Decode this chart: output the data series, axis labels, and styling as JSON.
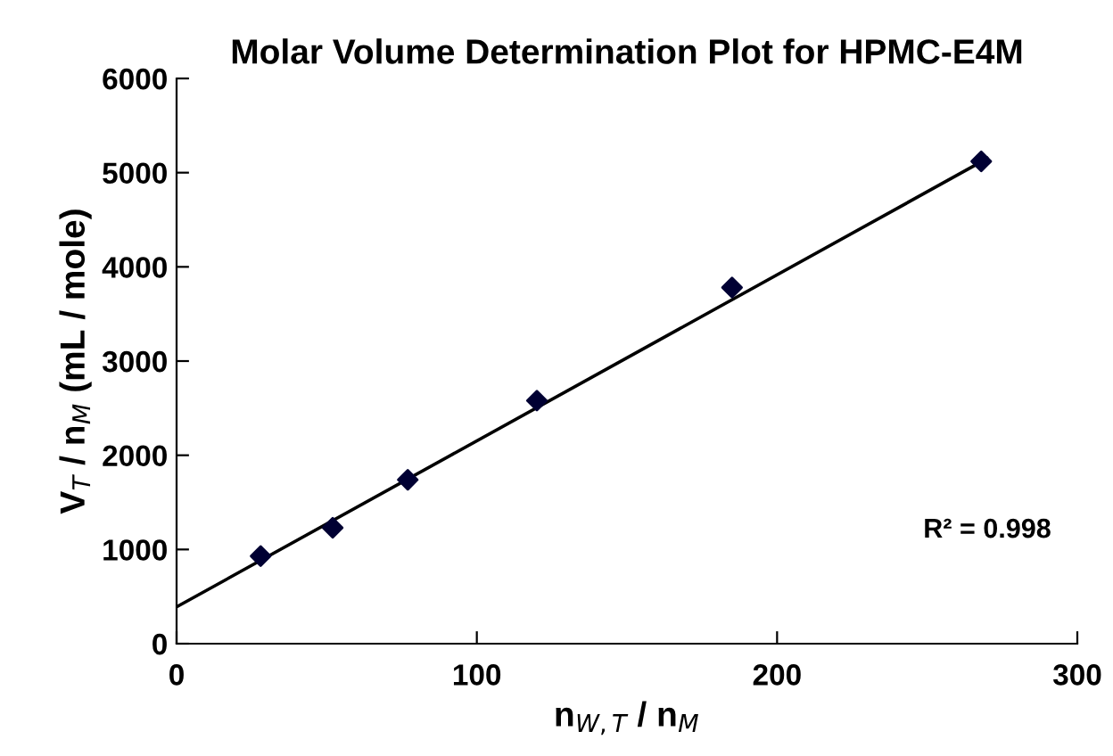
{
  "chart_data": {
    "type": "scatter",
    "title": "Molar Volume Determination Plot for HPMC-E4M",
    "xlabel": "n$_{W,T}$ / n$_{M}$",
    "ylabel": "V$_{T}$ / n$_{M}$ (mL / mole)",
    "series": [
      {
        "color": "#000033",
        "marker": "diamond",
        "x": [
          28,
          52,
          77,
          120,
          185,
          268
        ],
        "values": [
          930,
          1230,
          1740,
          2580,
          3780,
          5120
        ]
      },
      {
        "type": "line",
        "color": "#000000",
        "marker": "none",
        "line_style": "solid",
        "x": [
          0,
          270
        ],
        "values": [
          390,
          5150
        ]
      }
    ],
    "annotations": [
      "R² = 0.998"
    ],
    "xlim": [
      0,
      300
    ],
    "xticks": [
      0,
      100,
      200,
      300
    ],
    "ylim": [
      0,
      6000
    ],
    "yticks": [
      0,
      1000,
      2000,
      3000,
      4000,
      5000,
      6000
    ],
    "grid": false,
    "legend": false
  }
}
